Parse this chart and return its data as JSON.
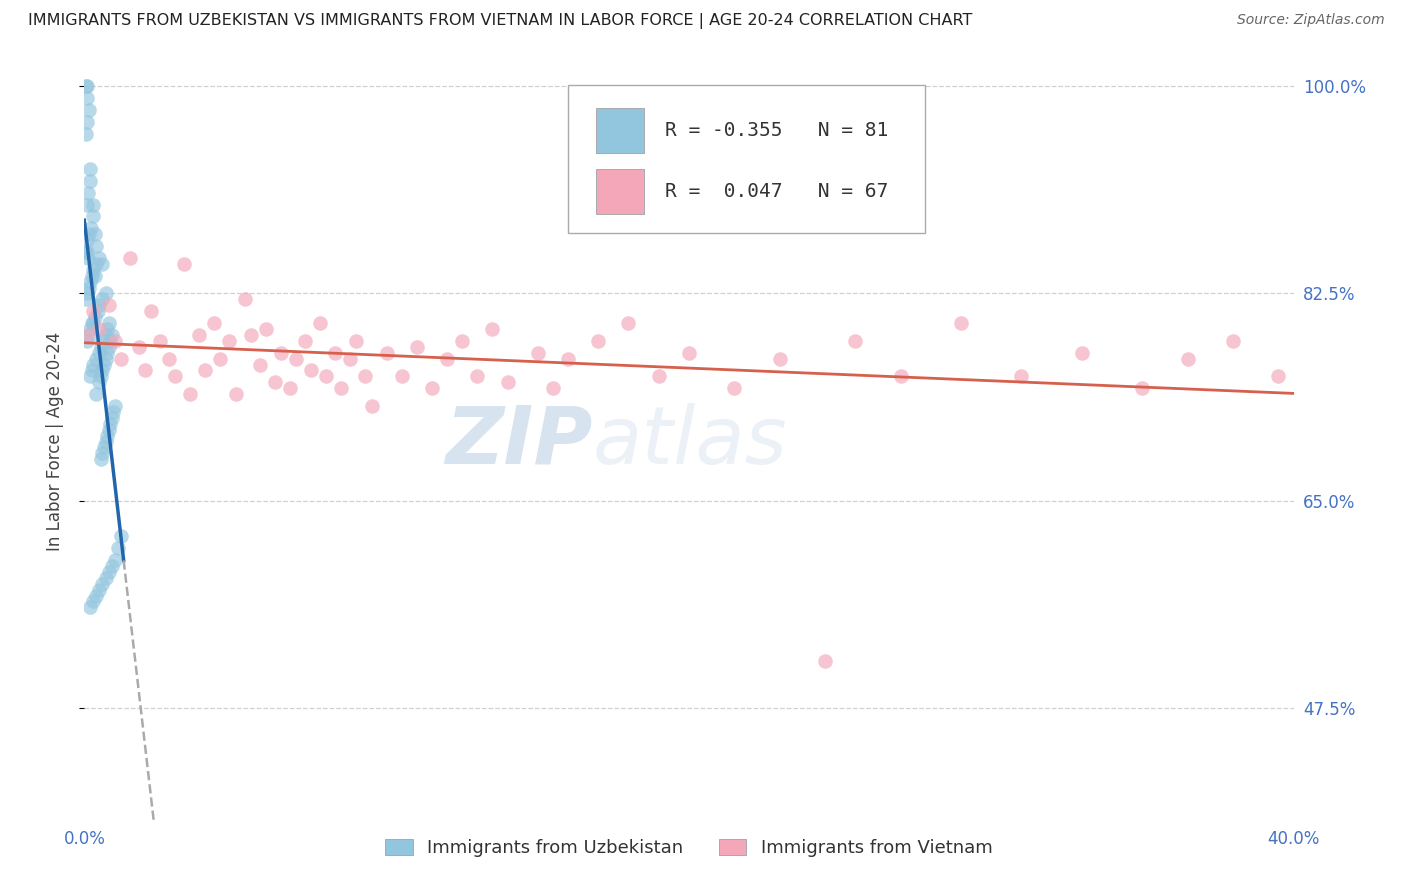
{
  "title": "IMMIGRANTS FROM UZBEKISTAN VS IMMIGRANTS FROM VIETNAM IN LABOR FORCE | AGE 20-24 CORRELATION CHART",
  "source": "Source: ZipAtlas.com",
  "ylabel": "In Labor Force | Age 20-24",
  "legend_label1": "Immigrants from Uzbekistan",
  "legend_label2": "Immigrants from Vietnam",
  "R1": -0.355,
  "N1": 81,
  "R2": 0.047,
  "N2": 67,
  "color1": "#92c5de",
  "color2": "#f4a7b9",
  "line_color1": "#2166ac",
  "line_color2": "#d6604d",
  "xmin": 0.0,
  "xmax": 0.4,
  "ymin": 0.38,
  "ymax": 1.02,
  "ytick_vals": [
    0.475,
    0.65,
    0.825,
    1.0
  ],
  "ytick_labels": [
    "47.5%",
    "65.0%",
    "82.5%",
    "100.0%"
  ],
  "xtick_vals": [
    0.0,
    0.05,
    0.1,
    0.15,
    0.2,
    0.25,
    0.3,
    0.35,
    0.4
  ],
  "xtick_labels": [
    "0.0%",
    "",
    "",
    "",
    "",
    "",
    "",
    "",
    "40.0%"
  ],
  "watermark_zip": "ZIP",
  "watermark_atlas": "atlas",
  "background_color": "#ffffff",
  "grid_color": "#d0d0d0",
  "title_color": "#222222",
  "axis_label_color": "#4472c4",
  "tick_color": "#4472c4",
  "seed": 42,
  "uzbekistan_x": [
    0.0005,
    0.001,
    0.0008,
    0.0015,
    0.001,
    0.0005,
    0.002,
    0.0018,
    0.0012,
    0.0008,
    0.003,
    0.0028,
    0.0022,
    0.0035,
    0.0015,
    0.001,
    0.004,
    0.0008,
    0.0003,
    0.0012,
    0.005,
    0.006,
    0.004,
    0.003,
    0.0035,
    0.0025,
    0.002,
    0.0015,
    0.001,
    0.0005,
    0.007,
    0.006,
    0.005,
    0.0045,
    0.0035,
    0.003,
    0.0025,
    0.002,
    0.0015,
    0.001,
    0.008,
    0.0075,
    0.007,
    0.006,
    0.0055,
    0.005,
    0.004,
    0.003,
    0.0025,
    0.002,
    0.009,
    0.0085,
    0.008,
    0.0075,
    0.007,
    0.0065,
    0.006,
    0.0055,
    0.005,
    0.004,
    0.01,
    0.0095,
    0.009,
    0.0085,
    0.008,
    0.0075,
    0.007,
    0.0065,
    0.006,
    0.0055,
    0.012,
    0.011,
    0.01,
    0.009,
    0.008,
    0.007,
    0.006,
    0.005,
    0.004,
    0.003,
    0.002
  ],
  "uzbekistan_y": [
    1.0,
    1.0,
    0.99,
    0.98,
    0.97,
    0.96,
    0.93,
    0.92,
    0.91,
    0.9,
    0.9,
    0.89,
    0.88,
    0.875,
    0.875,
    0.87,
    0.865,
    0.86,
    0.86,
    0.855,
    0.855,
    0.85,
    0.85,
    0.845,
    0.84,
    0.84,
    0.835,
    0.83,
    0.825,
    0.82,
    0.825,
    0.82,
    0.815,
    0.81,
    0.805,
    0.8,
    0.8,
    0.795,
    0.79,
    0.785,
    0.8,
    0.795,
    0.79,
    0.785,
    0.78,
    0.775,
    0.77,
    0.765,
    0.76,
    0.755,
    0.79,
    0.785,
    0.78,
    0.775,
    0.77,
    0.765,
    0.76,
    0.755,
    0.75,
    0.74,
    0.73,
    0.725,
    0.72,
    0.715,
    0.71,
    0.705,
    0.7,
    0.695,
    0.69,
    0.685,
    0.62,
    0.61,
    0.6,
    0.595,
    0.59,
    0.585,
    0.58,
    0.575,
    0.57,
    0.565,
    0.56
  ],
  "vietnam_x": [
    0.001,
    0.003,
    0.005,
    0.008,
    0.01,
    0.012,
    0.015,
    0.018,
    0.02,
    0.022,
    0.025,
    0.028,
    0.03,
    0.033,
    0.035,
    0.038,
    0.04,
    0.043,
    0.045,
    0.048,
    0.05,
    0.053,
    0.055,
    0.058,
    0.06,
    0.063,
    0.065,
    0.068,
    0.07,
    0.073,
    0.075,
    0.078,
    0.08,
    0.083,
    0.085,
    0.088,
    0.09,
    0.093,
    0.095,
    0.1,
    0.105,
    0.11,
    0.115,
    0.12,
    0.125,
    0.13,
    0.135,
    0.14,
    0.15,
    0.155,
    0.16,
    0.17,
    0.18,
    0.19,
    0.2,
    0.215,
    0.23,
    0.245,
    0.255,
    0.27,
    0.29,
    0.31,
    0.33,
    0.35,
    0.365,
    0.38,
    0.395
  ],
  "vietnam_y": [
    0.79,
    0.81,
    0.795,
    0.815,
    0.785,
    0.77,
    0.855,
    0.78,
    0.76,
    0.81,
    0.785,
    0.77,
    0.755,
    0.85,
    0.74,
    0.79,
    0.76,
    0.8,
    0.77,
    0.785,
    0.74,
    0.82,
    0.79,
    0.765,
    0.795,
    0.75,
    0.775,
    0.745,
    0.77,
    0.785,
    0.76,
    0.8,
    0.755,
    0.775,
    0.745,
    0.77,
    0.785,
    0.755,
    0.73,
    0.775,
    0.755,
    0.78,
    0.745,
    0.77,
    0.785,
    0.755,
    0.795,
    0.75,
    0.775,
    0.745,
    0.77,
    0.785,
    0.8,
    0.755,
    0.775,
    0.745,
    0.77,
    0.515,
    0.785,
    0.755,
    0.8,
    0.755,
    0.775,
    0.745,
    0.77,
    0.785,
    0.755
  ]
}
